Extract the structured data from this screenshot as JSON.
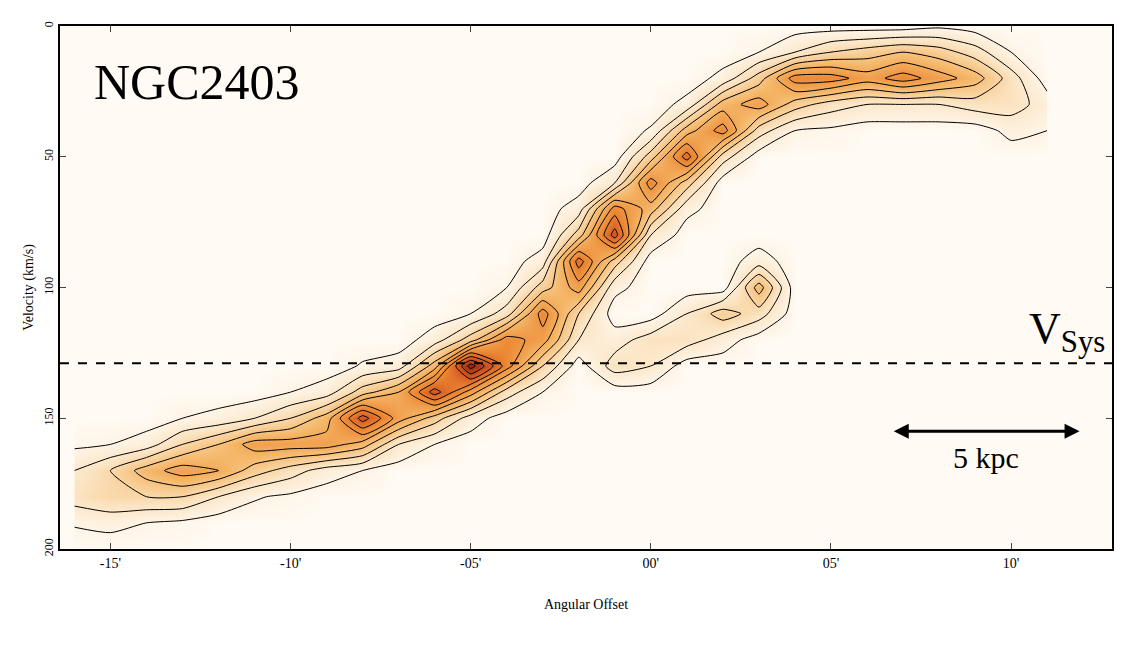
{
  "chart_data": {
    "type": "contour",
    "title": "NGC2403",
    "x_label": "Angular Offset",
    "y_label": "Velocity (km/s)",
    "x": [
      -16,
      -15,
      -14,
      -13,
      -12,
      -11,
      -10,
      -9,
      -8,
      -7,
      -6,
      -5,
      -4,
      -3,
      -2,
      -1,
      0,
      1,
      2,
      3,
      4,
      5,
      6,
      7,
      8,
      9,
      10,
      11
    ],
    "y": [
      0,
      10,
      20,
      30,
      40,
      50,
      60,
      70,
      80,
      90,
      100,
      110,
      120,
      130,
      140,
      150,
      160,
      170,
      180,
      190,
      200
    ],
    "z": [
      [
        0,
        0,
        0,
        0,
        0,
        0,
        0,
        0,
        0,
        0,
        0,
        0,
        0,
        0,
        0,
        0,
        0.3,
        1.5,
        2,
        0.6,
        0
      ],
      [
        0,
        0,
        0,
        0,
        0,
        0,
        0,
        0,
        0,
        0,
        0,
        0,
        0,
        0,
        0,
        0,
        0.5,
        2.5,
        2.5,
        0.8,
        0
      ],
      [
        0,
        0,
        0,
        0,
        0,
        0,
        0,
        0,
        0,
        0,
        0,
        0,
        0,
        0,
        0,
        0,
        1,
        4,
        2.5,
        0.5,
        0
      ],
      [
        0,
        0,
        0,
        0,
        0,
        0,
        0,
        0,
        0,
        0,
        0,
        0,
        0,
        0,
        0,
        0.5,
        2.5,
        5,
        2.5,
        0.3,
        0
      ],
      [
        0,
        0,
        0,
        0,
        0,
        0,
        0,
        0,
        0,
        0,
        0,
        0,
        0,
        0,
        0,
        0.8,
        3.5,
        4.5,
        1.5,
        0,
        0
      ],
      [
        0,
        0,
        0,
        0,
        0,
        0,
        0,
        0,
        0,
        0,
        0,
        0,
        0,
        0,
        0,
        1.5,
        5,
        3,
        0.6,
        0,
        0
      ],
      [
        0,
        0,
        0,
        0,
        0,
        0,
        0,
        0,
        0,
        0,
        0,
        0,
        0,
        0,
        0.5,
        2.5,
        5,
        2,
        0.3,
        0,
        0
      ],
      [
        0,
        0,
        0,
        0,
        0,
        0,
        0,
        0,
        0,
        0,
        0,
        0,
        0,
        0,
        1,
        4,
        5,
        1,
        0,
        0,
        0
      ],
      [
        0,
        0,
        0,
        0,
        0,
        0,
        0,
        0,
        0,
        0,
        0,
        0,
        0,
        0.6,
        3,
        8,
        4,
        0.5,
        0,
        0,
        0
      ],
      [
        0,
        0,
        0,
        0,
        0,
        0,
        0,
        0,
        0,
        0,
        0,
        0,
        0,
        1,
        4.5,
        5,
        1.5,
        0,
        0,
        0,
        0
      ],
      [
        0,
        0,
        0,
        0,
        0,
        0,
        0,
        0,
        0,
        0,
        0,
        0,
        1,
        4,
        8,
        3,
        0.5,
        0,
        0,
        0,
        0
      ],
      [
        0,
        0,
        0,
        0,
        0,
        0,
        0,
        0,
        0,
        0,
        0,
        0.5,
        3,
        10,
        5,
        1,
        0,
        0,
        0,
        0,
        0
      ],
      [
        0,
        0,
        0,
        0,
        0,
        0,
        0,
        0,
        0,
        0,
        0.5,
        2,
        6,
        6,
        2,
        0,
        0,
        0,
        0,
        0,
        0
      ],
      [
        0,
        0,
        0,
        0,
        0,
        0,
        0,
        0,
        0,
        1,
        3,
        6,
        5,
        2.5,
        0.5,
        0,
        0,
        0,
        0,
        0,
        0
      ],
      [
        0,
        0,
        0,
        0,
        0,
        0,
        0,
        1,
        3,
        7,
        5,
        2.5,
        1.5,
        0,
        0,
        0,
        0,
        0,
        0,
        0,
        0
      ],
      [
        0,
        0,
        0,
        0,
        0,
        0,
        1.5,
        6,
        8,
        3,
        0.8,
        0,
        1,
        2,
        0,
        0,
        0,
        0,
        0,
        0,
        0
      ],
      [
        0,
        0,
        0,
        0,
        0.6,
        3,
        6,
        4,
        1.5,
        0,
        0,
        0,
        2,
        1.5,
        0,
        0,
        0,
        0,
        0,
        0,
        0
      ],
      [
        0,
        0,
        0,
        0.8,
        4,
        7,
        3,
        0.8,
        0,
        0,
        0,
        1.5,
        2,
        0,
        0,
        0,
        0,
        0,
        0,
        0,
        0
      ],
      [
        0,
        0,
        0.8,
        4,
        6,
        2,
        0,
        0,
        0,
        0,
        0,
        3,
        1,
        0,
        0,
        0,
        0,
        0,
        0,
        0,
        0
      ],
      [
        0,
        0.5,
        3,
        5,
        2,
        0,
        0,
        0,
        0,
        1,
        4,
        2,
        0,
        0,
        0,
        0,
        0,
        0,
        0,
        0,
        0
      ],
      [
        0,
        1.5,
        6,
        3,
        0.5,
        0,
        0,
        0,
        0,
        0,
        0,
        0,
        0,
        0,
        0,
        0,
        0,
        0,
        0,
        0,
        0
      ],
      [
        0,
        2.5,
        6,
        2,
        0.3,
        0,
        0,
        0,
        0,
        0,
        0,
        0,
        0,
        0,
        0,
        0,
        0,
        0,
        0,
        0,
        0
      ],
      [
        0,
        3,
        5,
        1.5,
        0,
        0,
        0,
        0,
        0,
        0,
        0,
        0,
        0,
        0,
        0,
        0,
        0,
        0,
        0,
        0,
        0
      ],
      [
        0,
        3.5,
        6,
        1.5,
        0,
        0,
        0,
        0,
        0,
        0,
        0,
        0,
        0,
        0,
        0,
        0,
        0,
        0,
        0,
        0,
        0
      ],
      [
        0.3,
        3,
        5,
        1.5,
        0,
        0,
        0,
        0,
        0,
        0,
        0,
        0,
        0,
        0,
        0,
        0,
        0,
        0,
        0,
        0,
        0
      ],
      [
        0,
        2,
        4,
        2,
        0,
        0,
        0,
        0,
        0,
        0,
        0,
        0,
        0,
        0,
        0,
        0,
        0,
        0,
        0,
        0,
        0
      ],
      [
        0,
        0.5,
        2,
        2,
        0.8,
        0,
        0,
        0,
        0,
        0,
        0,
        0,
        0,
        0,
        0,
        0,
        0,
        0,
        0,
        0,
        0
      ],
      [
        0,
        0,
        0,
        1,
        0.5,
        0,
        0,
        0,
        0,
        0,
        0,
        0,
        0,
        0,
        0,
        0,
        0,
        0,
        0,
        0,
        0
      ]
    ],
    "zlim": [
      0,
      10
    ],
    "contour_levels": {
      "start": 0.5,
      "end": 9.5,
      "size": 1
    },
    "colors": [
      "#fffaf3",
      "#fbe3c0",
      "#f5b86a",
      "#ec8a35",
      "#d2531f",
      "#8c2410"
    ],
    "xlim": [
      -16.4,
      12.8
    ],
    "xticks": [
      {
        "value": -15,
        "label": "-15'"
      },
      {
        "value": -10,
        "label": "-10'"
      },
      {
        "value": -5,
        "label": "-05'"
      },
      {
        "value": 0,
        "label": "00'"
      },
      {
        "value": 5,
        "label": "05'"
      },
      {
        "value": 10,
        "label": "10'"
      }
    ],
    "ylim": [
      200,
      0
    ],
    "yticks": [
      0,
      50,
      100,
      150,
      200
    ],
    "vsys": {
      "label": "V",
      "subscript": "Sys",
      "value": 129,
      "line_style": "dashed"
    },
    "scale_bar": {
      "label": "5 kpc",
      "x": [
        6.7,
        11.9
      ],
      "y": 155
    }
  }
}
